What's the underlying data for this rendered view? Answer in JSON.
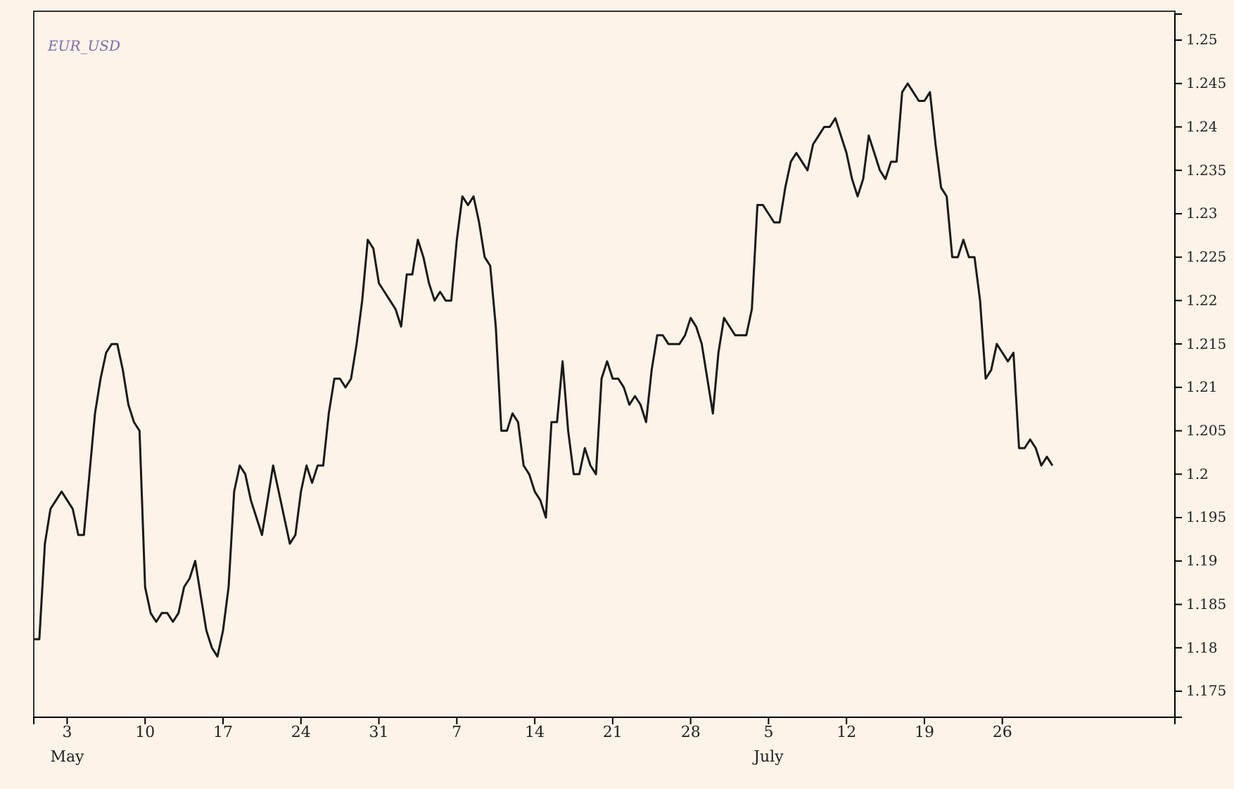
{
  "chart_data": {
    "type": "line",
    "title": "EUR_USD",
    "x": [
      "--04-30T00:00",
      "--04-30T12:00",
      "--05-01T00:00",
      "--05-01T12:00",
      "--05-02T00:00",
      "--05-02T12:00",
      "--05-03T00:00",
      "--05-03T12:00",
      "--05-04T00:00",
      "--05-04T12:00",
      "--05-05T00:00",
      "--05-05T12:00",
      "--05-06T00:00",
      "--05-06T12:00",
      "--05-07T00:00",
      "--05-07T12:00",
      "--05-08T00:00",
      "--05-08T12:00",
      "--05-09T00:00",
      "--05-09T12:00",
      "--05-10T00:00",
      "--05-10T12:00",
      "--05-11T00:00",
      "--05-11T12:00",
      "--05-12T00:00",
      "--05-12T12:00",
      "--05-13T00:00",
      "--05-13T12:00",
      "--05-14T00:00",
      "--05-14T12:00",
      "--05-15T00:00",
      "--05-15T12:00",
      "--05-16T00:00",
      "--05-16T12:00",
      "--05-17T00:00",
      "--05-17T12:00",
      "--05-18T00:00",
      "--05-18T12:00",
      "--05-19T00:00",
      "--05-19T12:00",
      "--05-20T00:00",
      "--05-20T12:00",
      "--05-21T00:00",
      "--05-21T12:00",
      "--05-22T00:00",
      "--05-22T12:00",
      "--05-23T00:00",
      "--05-23T12:00",
      "--05-24T00:00",
      "--05-24T12:00",
      "--05-25T00:00",
      "--05-25T12:00",
      "--05-26T00:00",
      "--05-26T12:00",
      "--05-27T00:00",
      "--05-27T12:00",
      "--05-28T00:00",
      "--05-28T12:00",
      "--05-29T00:00",
      "--05-29T12:00",
      "--05-30T00:00",
      "--05-30T12:00",
      "--05-31T00:00",
      "--05-31T12:00",
      "--06-01T00:00",
      "--06-01T12:00",
      "--06-02T00:00",
      "--06-02T12:00",
      "--06-03T00:00",
      "--06-03T12:00",
      "--06-04T00:00",
      "--06-04T12:00",
      "--06-05T00:00",
      "--06-05T12:00",
      "--06-06T00:00",
      "--06-06T12:00",
      "--06-07T00:00",
      "--06-07T12:00",
      "--06-08T00:00",
      "--06-08T12:00",
      "--06-09T00:00",
      "--06-09T12:00",
      "--06-10T00:00",
      "--06-10T12:00",
      "--06-11T00:00",
      "--06-11T12:00",
      "--06-12T00:00",
      "--06-12T12:00",
      "--06-13T00:00",
      "--06-13T12:00",
      "--06-14T00:00",
      "--06-14T12:00",
      "--06-15T00:00",
      "--06-15T12:00",
      "--06-16T00:00",
      "--06-16T12:00",
      "--06-17T00:00",
      "--06-17T12:00",
      "--06-18T00:00",
      "--06-18T12:00",
      "--06-19T00:00",
      "--06-19T12:00",
      "--06-20T00:00",
      "--06-20T12:00",
      "--06-21T00:00",
      "--06-21T12:00",
      "--06-22T00:00",
      "--06-22T12:00",
      "--06-23T00:00",
      "--06-23T12:00",
      "--06-24T00:00",
      "--06-24T12:00",
      "--06-25T00:00",
      "--06-25T12:00",
      "--06-26T00:00",
      "--06-26T12:00",
      "--06-27T00:00",
      "--06-27T12:00",
      "--06-28T00:00",
      "--06-28T12:00",
      "--06-29T00:00",
      "--06-29T12:00",
      "--06-30T00:00",
      "--06-30T12:00",
      "--07-01T00:00",
      "--07-01T12:00",
      "--07-02T00:00",
      "--07-02T12:00",
      "--07-03T00:00",
      "--07-03T12:00",
      "--07-04T00:00",
      "--07-04T12:00",
      "--07-05T00:00",
      "--07-05T12:00",
      "--07-06T00:00",
      "--07-06T12:00",
      "--07-07T00:00",
      "--07-07T12:00",
      "--07-08T00:00",
      "--07-08T12:00",
      "--07-09T00:00",
      "--07-09T12:00",
      "--07-10T00:00",
      "--07-10T12:00",
      "--07-11T00:00",
      "--07-11T12:00",
      "--07-12T00:00",
      "--07-12T12:00",
      "--07-13T00:00",
      "--07-13T12:00",
      "--07-14T00:00",
      "--07-14T12:00",
      "--07-15T00:00",
      "--07-15T12:00",
      "--07-16T00:00",
      "--07-16T12:00",
      "--07-17T00:00",
      "--07-17T12:00",
      "--07-18T00:00",
      "--07-18T12:00",
      "--07-19T00:00",
      "--07-19T12:00",
      "--07-20T00:00",
      "--07-20T12:00",
      "--07-21T00:00",
      "--07-21T12:00",
      "--07-22T00:00",
      "--07-22T12:00",
      "--07-23T00:00",
      "--07-23T12:00",
      "--07-24T00:00",
      "--07-24T12:00",
      "--07-25T00:00",
      "--07-25T12:00",
      "--07-26T00:00",
      "--07-26T12:00",
      "--07-27T00:00",
      "--07-27T12:00",
      "--07-28T00:00",
      "--07-28T12:00",
      "--07-29T00:00",
      "--07-29T12:00",
      "--07-30T00:00",
      "--07-30T12:00"
    ],
    "series": [
      {
        "color": "#1a1a1a",
        "values": [
          1.181,
          1.181,
          1.192,
          1.196,
          1.197,
          1.198,
          1.197,
          1.196,
          1.193,
          1.193,
          1.2,
          1.207,
          1.211,
          1.214,
          1.215,
          1.215,
          1.212,
          1.208,
          1.206,
          1.205,
          1.187,
          1.184,
          1.183,
          1.184,
          1.184,
          1.183,
          1.184,
          1.187,
          1.188,
          1.19,
          1.186,
          1.182,
          1.18,
          1.179,
          1.182,
          1.187,
          1.198,
          1.201,
          1.2,
          1.197,
          1.195,
          1.193,
          1.197,
          1.201,
          1.198,
          1.195,
          1.192,
          1.193,
          1.198,
          1.201,
          1.199,
          1.201,
          1.201,
          1.207,
          1.211,
          1.211,
          1.21,
          1.211,
          1.215,
          1.22,
          1.227,
          1.226,
          1.222,
          1.221,
          1.22,
          1.219,
          1.217,
          1.223,
          1.223,
          1.227,
          1.225,
          1.222,
          1.22,
          1.221,
          1.22,
          1.22,
          1.227,
          1.232,
          1.231,
          1.232,
          1.229,
          1.225,
          1.224,
          1.217,
          1.205,
          1.205,
          1.207,
          1.206,
          1.201,
          1.2,
          1.198,
          1.197,
          1.195,
          1.206,
          1.206,
          1.213,
          1.205,
          1.2,
          1.2,
          1.203,
          1.201,
          1.2,
          1.211,
          1.213,
          1.211,
          1.211,
          1.21,
          1.208,
          1.209,
          1.208,
          1.206,
          1.212,
          1.216,
          1.216,
          1.215,
          1.215,
          1.215,
          1.216,
          1.218,
          1.217,
          1.215,
          1.211,
          1.207,
          1.214,
          1.218,
          1.217,
          1.216,
          1.216,
          1.216,
          1.219,
          1.231,
          1.231,
          1.23,
          1.229,
          1.229,
          1.233,
          1.236,
          1.237,
          1.236,
          1.235,
          1.238,
          1.239,
          1.24,
          1.24,
          1.241,
          1.239,
          1.237,
          1.234,
          1.232,
          1.234,
          1.239,
          1.237,
          1.235,
          1.234,
          1.236,
          1.236,
          1.244,
          1.245,
          1.244,
          1.243,
          1.243,
          1.244,
          1.238,
          1.233,
          1.232,
          1.225,
          1.225,
          1.227,
          1.225,
          1.225,
          1.22,
          1.211,
          1.212,
          1.215,
          1.214,
          1.213,
          1.214,
          1.203,
          1.203,
          1.204,
          1.203,
          1.201,
          1.202,
          1.201
        ]
      }
    ],
    "xlim": [
      "--04-30T00:00",
      "--08-10T12:00"
    ],
    "xticks": [
      {
        "value": "--05-03",
        "label": "3\nMay"
      },
      {
        "value": "--05-10",
        "label": "10"
      },
      {
        "value": "--05-17",
        "label": "17"
      },
      {
        "value": "--05-24",
        "label": "24"
      },
      {
        "value": "--05-31",
        "label": "31"
      },
      {
        "value": "--06-07",
        "label": "7"
      },
      {
        "value": "--06-14",
        "label": "14"
      },
      {
        "value": "--06-21",
        "label": "21"
      },
      {
        "value": "--06-28",
        "label": "28"
      },
      {
        "value": "--07-05",
        "label": "5\nJuly"
      },
      {
        "value": "--07-12",
        "label": "12"
      },
      {
        "value": "--07-19",
        "label": "19"
      },
      {
        "value": "--07-26",
        "label": "26"
      }
    ],
    "ylim": [
      1.172,
      1.253
    ],
    "yticks": [
      1.175,
      1.18,
      1.185,
      1.19,
      1.195,
      1.2,
      1.205,
      1.21,
      1.215,
      1.22,
      1.225,
      1.23,
      1.235,
      1.24,
      1.245,
      1.25
    ],
    "line_style": "solid",
    "marker": "none",
    "grid": false
  }
}
